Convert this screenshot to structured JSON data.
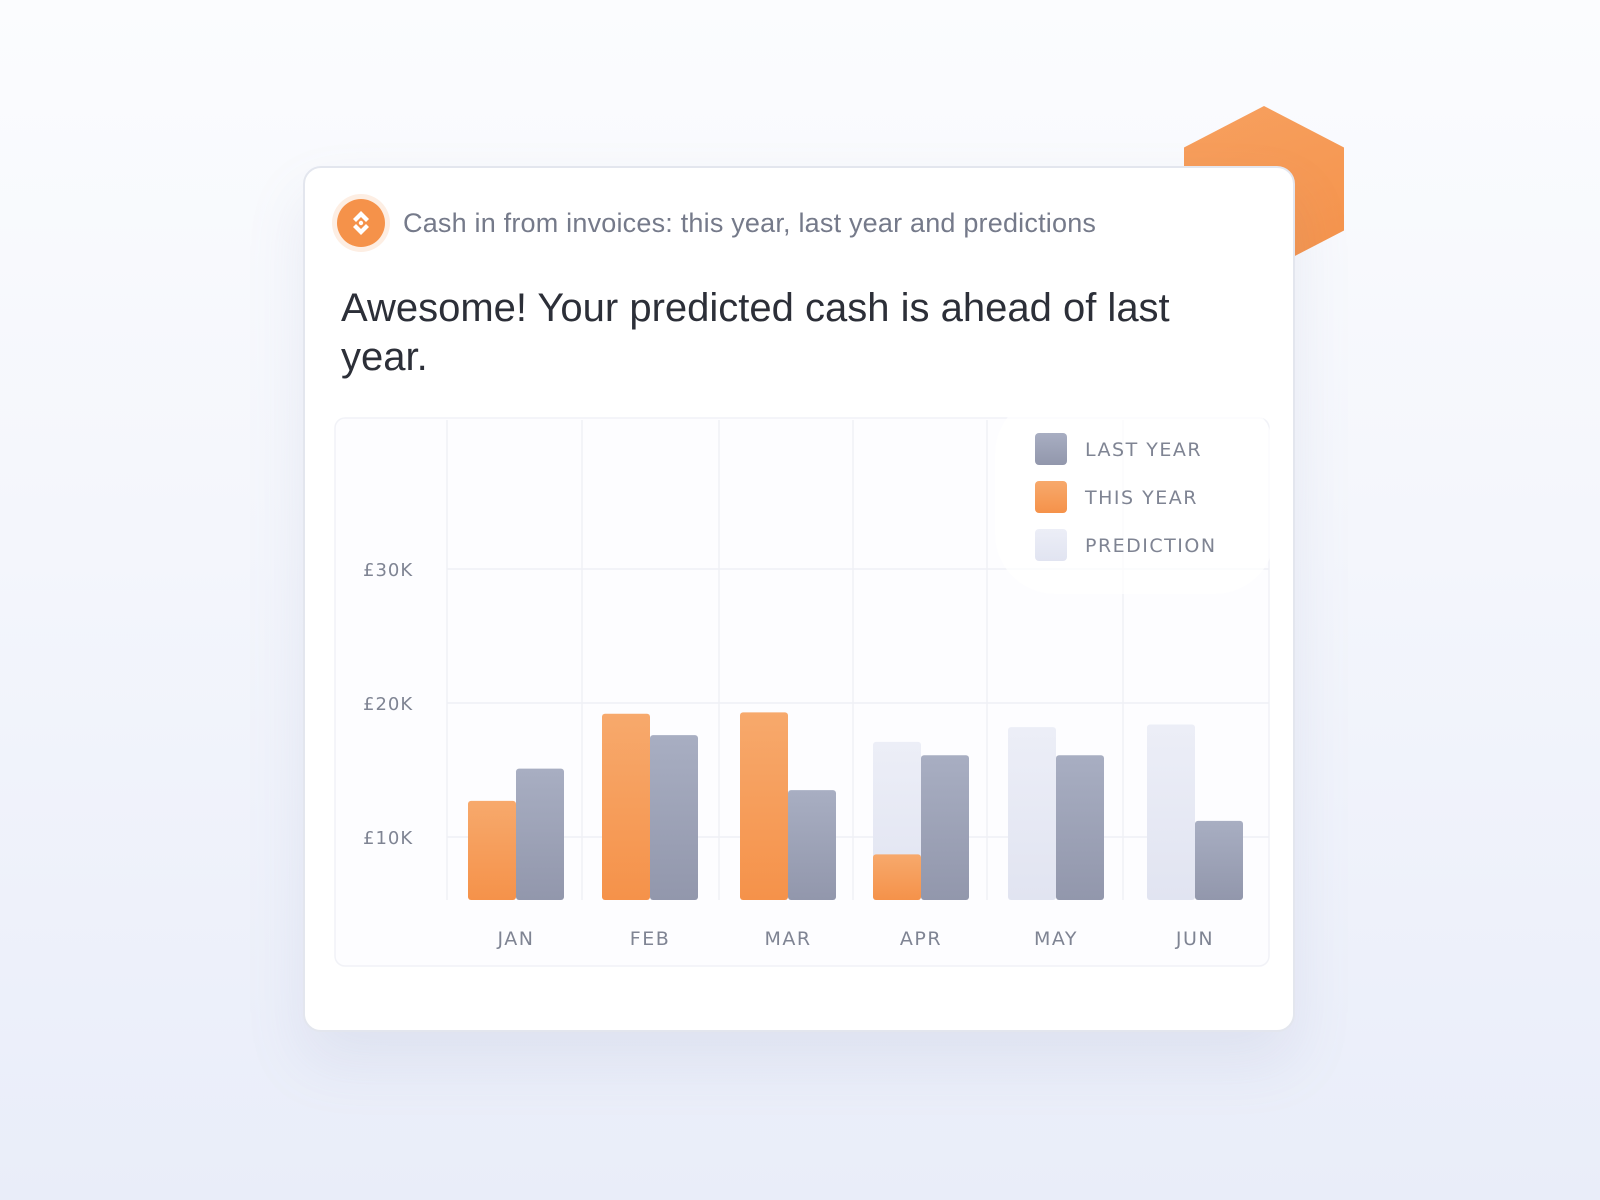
{
  "card": {
    "title": "Cash in from invoices: this year, last year and predictions",
    "headline": "Awesome! Your predicted cash is ahead of last year.",
    "logo_icon": "diamond-arrows-icon"
  },
  "colors": {
    "last_year": "#9aa0b4",
    "this_year": "#f5924a",
    "prediction": "#e6e9f4",
    "accent": "#f5924a"
  },
  "chart_data": {
    "type": "bar",
    "categories": [
      "JAN",
      "FEB",
      "MAR",
      "APR",
      "MAY",
      "JUN"
    ],
    "y_ticks": [
      {
        "value": 10,
        "label": "£10K"
      },
      {
        "value": 20,
        "label": "£20K"
      },
      {
        "value": 30,
        "label": "£30K"
      }
    ],
    "ylim": [
      5,
      40
    ],
    "y_units": "£K",
    "series": [
      {
        "name": "THIS YEAR",
        "key": "this_year",
        "values": [
          12.7,
          19.2,
          19.3,
          8.7,
          null,
          null
        ]
      },
      {
        "name": "PREDICTION",
        "key": "prediction",
        "values": [
          null,
          null,
          null,
          17.1,
          18.2,
          18.4
        ]
      },
      {
        "name": "LAST YEAR",
        "key": "last_year",
        "values": [
          15.1,
          17.6,
          13.5,
          16.1,
          16.1,
          11.2
        ]
      }
    ],
    "legend": {
      "position": "top-right",
      "items": [
        {
          "label": "LAST YEAR",
          "key": "last_year"
        },
        {
          "label": "THIS YEAR",
          "key": "this_year"
        },
        {
          "label": "PREDICTION",
          "key": "prediction"
        }
      ]
    },
    "grid": true
  }
}
